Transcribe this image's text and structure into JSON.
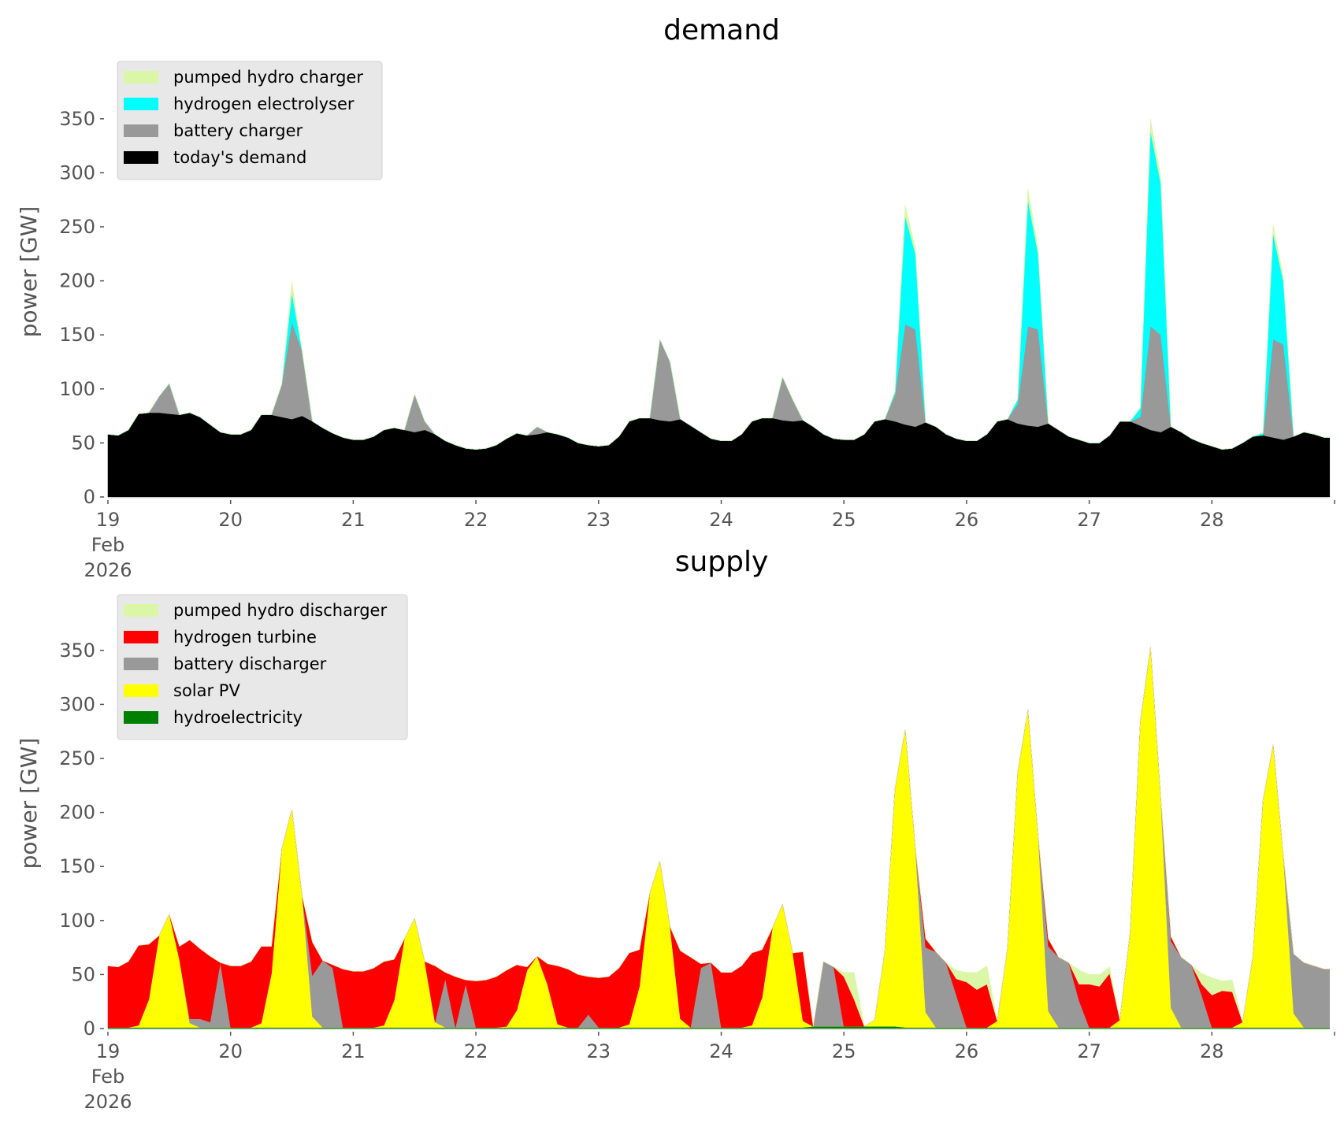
{
  "chart_data": [
    {
      "type": "area",
      "stacked": true,
      "title": "demand",
      "xlabel": "",
      "ylabel": "power [GW]",
      "ylim": [
        0,
        360
      ],
      "yticks": [
        0,
        50,
        100,
        150,
        200,
        250,
        300,
        350
      ],
      "xlim_days": [
        19,
        28.96
      ],
      "xtick_labels": [
        "19\nFeb\n2026",
        "20",
        "21",
        "22",
        "23",
        "24",
        "25",
        "26",
        "27",
        "28"
      ],
      "xtick_days": [
        19,
        20,
        21,
        22,
        23,
        24,
        25,
        26,
        27,
        28,
        29
      ],
      "grid": false,
      "legend_position": "top-left",
      "time_step_hours": 2,
      "start": "2026-02-19 00:00",
      "series": [
        {
          "name": "today's demand",
          "color": "#000000",
          "values": [
            58,
            57,
            62,
            77,
            78,
            78,
            77,
            76,
            78,
            74,
            67,
            60,
            58,
            58,
            62,
            76,
            76,
            74,
            72,
            75,
            70,
            64,
            59,
            55,
            53,
            53,
            56,
            62,
            64,
            62,
            60,
            62,
            58,
            52,
            48,
            45,
            44,
            45,
            48,
            54,
            59,
            57,
            58,
            60,
            58,
            55,
            50,
            48,
            47,
            48,
            56,
            70,
            73,
            73,
            71,
            70,
            72,
            66,
            60,
            54,
            52,
            52,
            58,
            70,
            73,
            73,
            71,
            70,
            71,
            65,
            58,
            54,
            53,
            53,
            58,
            70,
            72,
            70,
            67,
            65,
            69,
            65,
            58,
            54,
            52,
            52,
            58,
            70,
            72,
            68,
            66,
            65,
            68,
            62,
            56,
            53,
            50,
            50,
            57,
            70,
            70,
            66,
            62,
            60,
            65,
            60,
            54,
            50,
            47,
            44,
            45,
            50,
            56,
            57,
            55,
            53,
            56,
            60,
            58,
            55
          ]
        },
        {
          "name": "battery charger",
          "color": "#999999",
          "values": [
            0,
            0,
            0,
            0,
            0,
            15,
            28,
            0,
            0,
            0,
            0,
            0,
            0,
            0,
            0,
            0,
            0,
            30,
            90,
            60,
            0,
            0,
            0,
            0,
            0,
            0,
            0,
            0,
            0,
            0,
            35,
            8,
            0,
            0,
            0,
            0,
            0,
            0,
            0,
            0,
            0,
            0,
            7,
            0,
            0,
            0,
            0,
            0,
            0,
            0,
            0,
            0,
            0,
            0,
            75,
            55,
            0,
            0,
            0,
            0,
            0,
            0,
            0,
            0,
            0,
            0,
            40,
            20,
            0,
            0,
            0,
            0,
            0,
            0,
            0,
            0,
            0,
            25,
            93,
            90,
            0,
            0,
            0,
            0,
            0,
            0,
            0,
            0,
            0,
            18,
            92,
            90,
            0,
            0,
            0,
            0,
            0,
            0,
            0,
            0,
            0,
            8,
            96,
            90,
            0,
            0,
            0,
            0,
            0,
            0,
            0,
            0,
            0,
            0,
            91,
            88,
            0,
            0,
            0,
            0
          ]
        },
        {
          "name": "hydrogen electrolyser",
          "color": "#00ffff",
          "values": [
            0,
            0,
            0,
            0,
            0,
            0,
            0,
            0,
            0,
            0,
            0,
            0,
            0,
            0,
            0,
            0,
            0,
            0,
            27,
            0,
            0,
            0,
            0,
            0,
            0,
            0,
            0,
            0,
            0,
            0,
            0,
            0,
            0,
            0,
            0,
            0,
            0,
            0,
            0,
            0,
            0,
            0,
            0,
            0,
            0,
            0,
            0,
            0,
            0,
            0,
            0,
            0,
            0,
            0,
            0,
            0,
            0,
            0,
            0,
            0,
            0,
            0,
            0,
            0,
            0,
            0,
            0,
            0,
            0,
            0,
            0,
            0,
            0,
            0,
            0,
            0,
            0,
            2,
            100,
            70,
            0,
            0,
            0,
            0,
            0,
            0,
            0,
            0,
            0,
            4,
            117,
            70,
            0,
            0,
            0,
            0,
            0,
            0,
            0,
            0,
            0,
            8,
            181,
            140,
            0,
            0,
            0,
            0,
            0,
            0,
            0,
            0,
            0,
            2,
            98,
            58,
            0,
            0,
            0,
            0
          ]
        },
        {
          "name": "pumped hydro charger",
          "color": "#d9f7a6",
          "values": [
            0,
            0,
            0,
            0,
            0,
            0,
            0,
            0,
            0,
            0,
            0,
            0,
            0,
            0,
            0,
            0,
            0,
            0,
            10,
            0,
            0,
            0,
            0,
            0,
            0,
            0,
            0,
            0,
            0,
            0,
            0,
            0,
            0,
            0,
            0,
            0,
            0,
            0,
            0,
            0,
            0,
            0,
            0,
            0,
            0,
            0,
            0,
            0,
            0,
            0,
            0,
            0,
            0,
            0,
            0,
            0,
            0,
            0,
            0,
            0,
            0,
            0,
            0,
            0,
            0,
            0,
            0,
            0,
            0,
            0,
            0,
            0,
            0,
            0,
            0,
            0,
            0,
            1,
            10,
            5,
            0,
            0,
            0,
            0,
            0,
            0,
            0,
            0,
            0,
            1,
            10,
            5,
            0,
            0,
            0,
            0,
            0,
            0,
            0,
            0,
            0,
            1,
            11,
            6,
            0,
            0,
            0,
            0,
            0,
            0,
            0,
            0,
            0,
            1,
            8,
            4,
            0,
            0,
            0,
            0
          ]
        }
      ]
    },
    {
      "type": "area",
      "stacked": true,
      "title": "supply",
      "xlabel": "",
      "ylabel": "power [GW]",
      "ylim": [
        0,
        360
      ],
      "yticks": [
        0,
        50,
        100,
        150,
        200,
        250,
        300,
        350
      ],
      "xlim_days": [
        19,
        28.96
      ],
      "xtick_labels": [
        "19\nFeb\n2026",
        "20",
        "21",
        "22",
        "23",
        "24",
        "25",
        "26",
        "27",
        "28"
      ],
      "xtick_days": [
        19,
        20,
        21,
        22,
        23,
        24,
        25,
        26,
        27,
        28,
        29
      ],
      "grid": false,
      "legend_position": "top-left",
      "time_step_hours": 2,
      "start": "2026-02-19 00:00",
      "series": [
        {
          "name": "hydroelectricity",
          "color": "#008000",
          "values": [
            1,
            1,
            1,
            1,
            1,
            1,
            1,
            1,
            1,
            1,
            1,
            1,
            1,
            1,
            1,
            1,
            1,
            1,
            1,
            1,
            1,
            1,
            1,
            1,
            1,
            1,
            1,
            1,
            1,
            1,
            1,
            1,
            1,
            1,
            1,
            1,
            1,
            1,
            1,
            1,
            1,
            1,
            1,
            1,
            1,
            1,
            1,
            1,
            1,
            1,
            1,
            1,
            1,
            1,
            1,
            1,
            1,
            1,
            1,
            1,
            1,
            1,
            1,
            1,
            1,
            1,
            1,
            1,
            1,
            2,
            2,
            2,
            2,
            2,
            2,
            2,
            2,
            2,
            1,
            1,
            1,
            1,
            1,
            1,
            1,
            1,
            1,
            1,
            1,
            1,
            1,
            1,
            1,
            1,
            1,
            1,
            1,
            1,
            1,
            1,
            1,
            1,
            1,
            1,
            1,
            1,
            1,
            1,
            1,
            1,
            1,
            1,
            1,
            1,
            1,
            1,
            1,
            1,
            1,
            1
          ]
        },
        {
          "name": "solar PV",
          "color": "#ffff00",
          "values": [
            0,
            0,
            0,
            2,
            26,
            85,
            105,
            63,
            4,
            0,
            0,
            0,
            0,
            0,
            0,
            4,
            50,
            165,
            202,
            122,
            10,
            0,
            0,
            0,
            0,
            0,
            0,
            2,
            25,
            82,
            101,
            61,
            5,
            0,
            0,
            0,
            0,
            0,
            0,
            1,
            16,
            53,
            66,
            40,
            3,
            0,
            0,
            0,
            0,
            0,
            0,
            3,
            38,
            124,
            154,
            93,
            8,
            0,
            0,
            0,
            0,
            0,
            0,
            2,
            28,
            92,
            114,
            69,
            6,
            0,
            0,
            0,
            0,
            0,
            0,
            6,
            69,
            220,
            276,
            165,
            14,
            0,
            0,
            0,
            0,
            0,
            0,
            6,
            73,
            236,
            294,
            177,
            15,
            0,
            0,
            0,
            0,
            0,
            0,
            7,
            88,
            283,
            352,
            212,
            18,
            0,
            0,
            0,
            0,
            0,
            0,
            5,
            65,
            210,
            262,
            158,
            13,
            0,
            0,
            0
          ]
        },
        {
          "name": "battery discharger",
          "color": "#999999",
          "values": [
            0,
            0,
            0,
            0,
            0,
            0,
            0,
            0,
            4,
            8,
            5,
            60,
            0,
            0,
            0,
            0,
            0,
            0,
            0,
            0,
            38,
            62,
            55,
            0,
            0,
            0,
            0,
            0,
            0,
            0,
            0,
            0,
            0,
            45,
            0,
            40,
            0,
            0,
            0,
            0,
            0,
            0,
            0,
            0,
            0,
            0,
            0,
            12,
            0,
            0,
            0,
            0,
            0,
            0,
            0,
            0,
            0,
            0,
            55,
            60,
            0,
            0,
            0,
            0,
            0,
            0,
            0,
            0,
            0,
            0,
            60,
            55,
            0,
            0,
            0,
            0,
            0,
            0,
            0,
            0,
            60,
            70,
            60,
            30,
            0,
            0,
            0,
            0,
            0,
            0,
            0,
            0,
            60,
            65,
            60,
            25,
            0,
            0,
            0,
            0,
            0,
            0,
            0,
            0,
            62,
            65,
            58,
            30,
            0,
            0,
            0,
            0,
            0,
            0,
            0,
            0,
            55,
            60,
            57,
            54
          ]
        },
        {
          "name": "hydrogen turbine",
          "color": "#ff0000",
          "values": [
            57,
            56,
            61,
            74,
            51,
            0,
            0,
            12,
            73,
            65,
            61,
            0,
            57,
            57,
            61,
            71,
            25,
            0,
            0,
            0,
            31,
            0,
            3,
            54,
            52,
            52,
            55,
            59,
            38,
            0,
            0,
            0,
            52,
            6,
            47,
            4,
            43,
            44,
            47,
            52,
            42,
            3,
            0,
            19,
            54,
            54,
            49,
            35,
            46,
            47,
            55,
            66,
            34,
            0,
            0,
            0,
            63,
            65,
            4,
            0,
            51,
            51,
            57,
            67,
            44,
            0,
            0,
            0,
            64,
            0,
            0,
            0,
            46,
            25,
            0,
            0,
            0,
            0,
            0,
            0,
            8,
            0,
            0,
            15,
            42,
            35,
            40,
            0,
            0,
            0,
            0,
            0,
            7,
            0,
            0,
            15,
            40,
            38,
            50,
            0,
            0,
            0,
            0,
            0,
            4,
            0,
            0,
            10,
            30,
            34,
            33,
            0,
            0,
            0,
            0,
            0,
            0,
            0,
            0,
            0
          ]
        },
        {
          "name": "pumped hydro discharger",
          "color": "#d9f7a6",
          "values": [
            0,
            0,
            0,
            0,
            0,
            0,
            0,
            0,
            0,
            0,
            0,
            0,
            0,
            0,
            0,
            0,
            0,
            0,
            0,
            0,
            0,
            0,
            0,
            0,
            0,
            0,
            0,
            0,
            0,
            0,
            0,
            0,
            0,
            0,
            0,
            0,
            0,
            0,
            0,
            0,
            0,
            0,
            0,
            0,
            0,
            0,
            0,
            0,
            0,
            0,
            0,
            0,
            0,
            0,
            0,
            0,
            0,
            0,
            0,
            0,
            0,
            0,
            0,
            0,
            0,
            0,
            0,
            0,
            0,
            0,
            0,
            0,
            4,
            25,
            0,
            0,
            0,
            0,
            0,
            0,
            0,
            0,
            0,
            8,
            9,
            16,
            17,
            0,
            0,
            0,
            0,
            0,
            0,
            0,
            0,
            13,
            9,
            11,
            6,
            0,
            0,
            0,
            0,
            0,
            0,
            0,
            0,
            10,
            16,
            9,
            11,
            0,
            0,
            0,
            0,
            0,
            0,
            0,
            0,
            0
          ]
        }
      ]
    }
  ]
}
